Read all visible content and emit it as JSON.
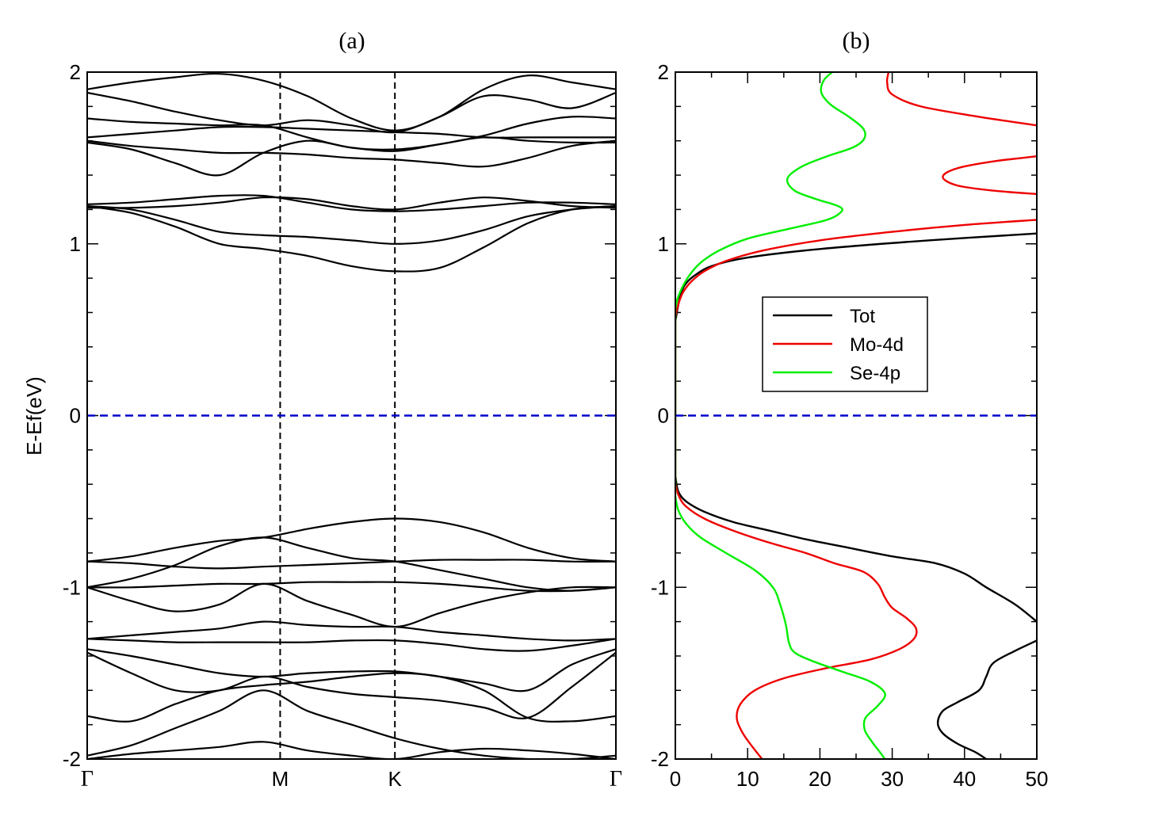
{
  "chart_data": [
    {
      "type": "line",
      "panel_label": "(a)",
      "title": "(a)",
      "xlabel": "",
      "ylabel": "E-Ef(eV)",
      "ylim": [
        -2,
        2
      ],
      "yticks": [
        -2,
        -1,
        0,
        1,
        2
      ],
      "ytick_labels": [
        "-2",
        "-1",
        "0",
        "1",
        "2"
      ],
      "high_symmetry_points": [
        "Γ",
        "M",
        "K",
        "Γ"
      ],
      "kpath_positions": [
        0,
        0.365,
        0.582,
        1.0
      ],
      "fermi_level": 0,
      "fermi_color": "#0000cc",
      "band_color": "#000000",
      "conduction_bands": [
        {
          "values": [
            1.22,
            1.18,
            1.1,
            1.0,
            0.97,
            0.93,
            0.87,
            0.84,
            0.86,
            0.98,
            1.12,
            1.2,
            1.22
          ]
        },
        {
          "values": [
            1.22,
            1.2,
            1.14,
            1.07,
            1.05,
            1.04,
            1.02,
            1.0,
            1.02,
            1.08,
            1.16,
            1.2,
            1.22
          ]
        },
        {
          "values": [
            1.23,
            1.24,
            1.26,
            1.28,
            1.28,
            1.24,
            1.2,
            1.19,
            1.2,
            1.22,
            1.24,
            1.24,
            1.23
          ]
        },
        {
          "values": [
            1.21,
            1.21,
            1.22,
            1.24,
            1.27,
            1.26,
            1.22,
            1.2,
            1.24,
            1.27,
            1.25,
            1.22,
            1.21
          ]
        },
        {
          "values": [
            1.6,
            1.57,
            1.55,
            1.53,
            1.53,
            1.52,
            1.5,
            1.49,
            1.47,
            1.45,
            1.5,
            1.57,
            1.6
          ]
        },
        {
          "values": [
            1.62,
            1.64,
            1.66,
            1.68,
            1.68,
            1.67,
            1.66,
            1.65,
            1.64,
            1.62,
            1.62,
            1.62,
            1.62
          ]
        },
        {
          "values": [
            1.73,
            1.71,
            1.7,
            1.69,
            1.69,
            1.62,
            1.56,
            1.55,
            1.58,
            1.63,
            1.7,
            1.74,
            1.73
          ]
        },
        {
          "values": [
            1.88,
            1.83,
            1.77,
            1.72,
            1.69,
            1.72,
            1.69,
            1.65,
            1.74,
            1.86,
            1.84,
            1.79,
            1.88
          ]
        },
        {
          "values": [
            1.9,
            1.94,
            1.97,
            1.99,
            1.95,
            1.86,
            1.73,
            1.66,
            1.74,
            1.9,
            1.98,
            1.94,
            1.9
          ]
        },
        {
          "values": [
            1.59,
            1.55,
            1.47,
            1.4,
            1.53,
            1.6,
            1.56,
            1.54,
            1.58,
            1.62,
            1.6,
            1.59,
            1.59
          ]
        }
      ],
      "valence_bands": [
        {
          "values": [
            -0.85,
            -0.82,
            -0.77,
            -0.73,
            -0.71,
            -0.66,
            -0.62,
            -0.6,
            -0.62,
            -0.68,
            -0.77,
            -0.83,
            -0.85
          ]
        },
        {
          "values": [
            -0.85,
            -0.86,
            -0.88,
            -0.89,
            -0.88,
            -0.87,
            -0.86,
            -0.85,
            -0.84,
            -0.84,
            -0.84,
            -0.85,
            -0.85
          ]
        },
        {
          "values": [
            -1.0,
            -0.95,
            -0.87,
            -0.76,
            -0.71,
            -0.77,
            -0.83,
            -0.85,
            -0.9,
            -0.95,
            -1.0,
            -1.02,
            -1.0
          ]
        },
        {
          "values": [
            -1.0,
            -1.0,
            -0.99,
            -0.98,
            -0.98,
            -0.97,
            -0.97,
            -0.97,
            -0.98,
            -1.0,
            -1.02,
            -1.02,
            -1.0
          ]
        },
        {
          "values": [
            -1.0,
            -1.08,
            -1.14,
            -1.1,
            -0.98,
            -1.08,
            -1.16,
            -1.23,
            -1.15,
            -1.08,
            -1.03,
            -1.0,
            -1.0
          ]
        },
        {
          "values": [
            -1.3,
            -1.28,
            -1.26,
            -1.24,
            -1.2,
            -1.22,
            -1.23,
            -1.23,
            -1.26,
            -1.28,
            -1.3,
            -1.31,
            -1.3
          ]
        },
        {
          "values": [
            -1.3,
            -1.31,
            -1.32,
            -1.32,
            -1.32,
            -1.32,
            -1.31,
            -1.31,
            -1.33,
            -1.36,
            -1.37,
            -1.34,
            -1.3
          ]
        },
        {
          "values": [
            -1.36,
            -1.4,
            -1.45,
            -1.5,
            -1.52,
            -1.5,
            -1.49,
            -1.49,
            -1.52,
            -1.56,
            -1.6,
            -1.45,
            -1.36
          ]
        },
        {
          "values": [
            -1.38,
            -1.5,
            -1.6,
            -1.6,
            -1.52,
            -1.58,
            -1.62,
            -1.64,
            -1.66,
            -1.7,
            -1.76,
            -1.58,
            -1.38
          ]
        },
        {
          "values": [
            -1.75,
            -1.78,
            -1.68,
            -1.6,
            -1.57,
            -1.55,
            -1.52,
            -1.5,
            -1.52,
            -1.6,
            -1.76,
            -1.78,
            -1.75
          ]
        },
        {
          "values": [
            -1.98,
            -1.92,
            -1.82,
            -1.72,
            -1.6,
            -1.72,
            -1.8,
            -1.88,
            -1.94,
            -1.98,
            -2.0,
            -2.0,
            -1.98
          ]
        },
        {
          "values": [
            -2.0,
            -1.97,
            -1.95,
            -1.93,
            -1.9,
            -1.95,
            -1.98,
            -2.0,
            -1.96,
            -1.94,
            -1.95,
            -1.97,
            -2.0
          ]
        }
      ]
    },
    {
      "type": "line",
      "panel_label": "(b)",
      "title": "(b)",
      "xlabel": "",
      "ylabel": "",
      "xlim": [
        0,
        50
      ],
      "ylim": [
        -2,
        2
      ],
      "xticks": [
        0,
        10,
        20,
        30,
        40,
        50
      ],
      "xtick_labels": [
        "0",
        "10",
        "20",
        "30",
        "40",
        "50"
      ],
      "yticks": [
        -2,
        -1,
        0,
        1,
        2
      ],
      "ytick_labels": [
        "-2",
        "-1",
        "0",
        "1",
        "2"
      ],
      "fermi_level": 0,
      "fermi_color": "#0000cc",
      "legend": {
        "position": "center-right",
        "entries": [
          "Tot",
          "Mo-4d",
          "Se-4p"
        ]
      },
      "series": [
        {
          "name": "Tot",
          "color": "#000000",
          "points": [
            [
              50,
              1.06
            ],
            [
              35,
              1.02
            ],
            [
              20,
              0.97
            ],
            [
              10,
              0.92
            ],
            [
              5,
              0.87
            ],
            [
              2.5,
              0.81
            ],
            [
              1.3,
              0.76
            ],
            [
              0.7,
              0.7
            ],
            [
              0.3,
              0.62
            ],
            [
              0,
              0.55
            ],
            [
              0,
              -0.35
            ],
            [
              0.4,
              -0.44
            ],
            [
              1.5,
              -0.5
            ],
            [
              4,
              -0.56
            ],
            [
              8,
              -0.62
            ],
            [
              13,
              -0.67
            ],
            [
              18,
              -0.72
            ],
            [
              24,
              -0.77
            ],
            [
              30,
              -0.82
            ],
            [
              36,
              -0.86
            ],
            [
              40,
              -0.92
            ],
            [
              43,
              -1.0
            ],
            [
              47,
              -1.1
            ],
            [
              50,
              -1.2
            ],
            [
              50,
              -1.31
            ],
            [
              47,
              -1.37
            ],
            [
              44,
              -1.44
            ],
            [
              43,
              -1.52
            ],
            [
              42,
              -1.6
            ],
            [
              39,
              -1.67
            ],
            [
              37,
              -1.72
            ],
            [
              36.3,
              -1.79
            ],
            [
              37,
              -1.85
            ],
            [
              39,
              -1.91
            ],
            [
              41.5,
              -1.96
            ],
            [
              43,
              -2.0
            ]
          ]
        },
        {
          "name": "Mo-4d",
          "color": "#ee0000",
          "points": [
            [
              29.5,
              2.0
            ],
            [
              29.3,
              1.94
            ],
            [
              30,
              1.87
            ],
            [
              34,
              1.8
            ],
            [
              42,
              1.74
            ],
            [
              50,
              1.69
            ],
            [
              50,
              1.51
            ],
            [
              44,
              1.48
            ],
            [
              39,
              1.44
            ],
            [
              37,
              1.39
            ],
            [
              39,
              1.34
            ],
            [
              44,
              1.31
            ],
            [
              50,
              1.29
            ],
            [
              50,
              1.14
            ],
            [
              40,
              1.11
            ],
            [
              30,
              1.07
            ],
            [
              20,
              1.02
            ],
            [
              12,
              0.96
            ],
            [
              7,
              0.9
            ],
            [
              4,
              0.84
            ],
            [
              2.2,
              0.78
            ],
            [
              1.1,
              0.72
            ],
            [
              0.5,
              0.66
            ],
            [
              0,
              0.58
            ],
            [
              0,
              -0.4
            ],
            [
              0.5,
              -0.47
            ],
            [
              1.5,
              -0.53
            ],
            [
              4,
              -0.6
            ],
            [
              8,
              -0.67
            ],
            [
              13,
              -0.74
            ],
            [
              18,
              -0.8
            ],
            [
              22,
              -0.86
            ],
            [
              26,
              -0.91
            ],
            [
              28,
              -0.98
            ],
            [
              29,
              -1.06
            ],
            [
              30,
              -1.12
            ],
            [
              32,
              -1.18
            ],
            [
              33.3,
              -1.24
            ],
            [
              33,
              -1.3
            ],
            [
              31,
              -1.36
            ],
            [
              27,
              -1.42
            ],
            [
              21,
              -1.47
            ],
            [
              15,
              -1.53
            ],
            [
              11,
              -1.6
            ],
            [
              9,
              -1.68
            ],
            [
              8.5,
              -1.76
            ],
            [
              9.2,
              -1.84
            ],
            [
              10.5,
              -1.92
            ],
            [
              12,
              -2.0
            ]
          ]
        },
        {
          "name": "Se-4p",
          "color": "#00ee00",
          "points": [
            [
              21.7,
              2.0
            ],
            [
              20.5,
              1.95
            ],
            [
              20.2,
              1.88
            ],
            [
              21.5,
              1.81
            ],
            [
              24,
              1.74
            ],
            [
              26,
              1.67
            ],
            [
              26.1,
              1.61
            ],
            [
              24.5,
              1.56
            ],
            [
              21,
              1.51
            ],
            [
              17.5,
              1.45
            ],
            [
              15.5,
              1.38
            ],
            [
              16.5,
              1.31
            ],
            [
              19.5,
              1.26
            ],
            [
              22.5,
              1.22
            ],
            [
              23,
              1.19
            ],
            [
              21,
              1.14
            ],
            [
              16,
              1.09
            ],
            [
              10,
              1.03
            ],
            [
              6,
              0.96
            ],
            [
              3.5,
              0.89
            ],
            [
              2,
              0.82
            ],
            [
              1,
              0.75
            ],
            [
              0.3,
              0.68
            ],
            [
              0,
              0.62
            ],
            [
              0,
              -0.47
            ],
            [
              0.4,
              -0.55
            ],
            [
              1.5,
              -0.63
            ],
            [
              3.5,
              -0.71
            ],
            [
              7,
              -0.8
            ],
            [
              11,
              -0.9
            ],
            [
              13.5,
              -1.0
            ],
            [
              14.5,
              -1.1
            ],
            [
              15.3,
              -1.22
            ],
            [
              15.7,
              -1.32
            ],
            [
              16.5,
              -1.38
            ],
            [
              19,
              -1.43
            ],
            [
              23,
              -1.49
            ],
            [
              27,
              -1.55
            ],
            [
              29,
              -1.62
            ],
            [
              28,
              -1.69
            ],
            [
              26.3,
              -1.76
            ],
            [
              26.2,
              -1.83
            ],
            [
              27.2,
              -1.9
            ],
            [
              28.3,
              -1.96
            ],
            [
              29,
              -2.0
            ]
          ]
        }
      ]
    }
  ]
}
